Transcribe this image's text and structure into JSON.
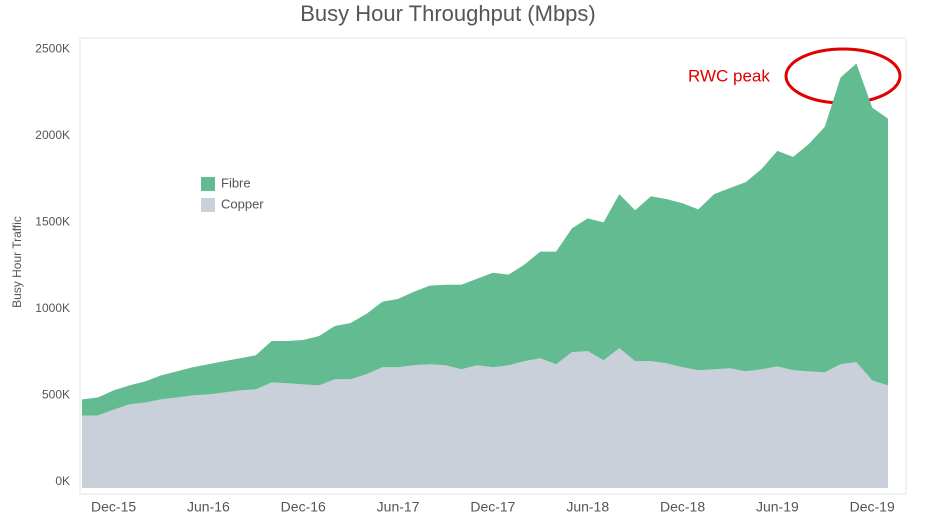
{
  "chart_data": {
    "type": "stacked_area",
    "title": "Busy Hour Throughput (Mbps)",
    "y_label": "Busy Hour Traffic",
    "categories": [
      null,
      null,
      "Dec-15",
      null,
      null,
      null,
      null,
      null,
      "Jun-16",
      null,
      null,
      null,
      null,
      null,
      "Dec-16",
      null,
      null,
      null,
      null,
      null,
      "Jun-17",
      null,
      null,
      null,
      null,
      null,
      "Dec-17",
      null,
      null,
      null,
      null,
      null,
      "Jun-18",
      null,
      null,
      null,
      null,
      null,
      "Dec-18",
      null,
      null,
      null,
      null,
      null,
      "Jun-19",
      null,
      null,
      null,
      null,
      null,
      "Dec-19",
      null
    ],
    "series": [
      {
        "name": "Copper",
        "color": "#c9d0da",
        "values": [
          419,
          419,
          453,
          483,
          494,
          512,
          523,
          535,
          541,
          552,
          564,
          570,
          610,
          605,
          599,
          593,
          628,
          628,
          657,
          698,
          698,
          709,
          715,
          709,
          686,
          709,
          698,
          709,
          733,
          750,
          715,
          785,
          791,
          738,
          808,
          733,
          733,
          721,
          698,
          680,
          686,
          692,
          674,
          686,
          703,
          680,
          674,
          669,
          715,
          727,
          622,
          593
        ]
      },
      {
        "name": "Fibre",
        "color": "#63bb92",
        "values": [
          93,
          104,
          111,
          110,
          122,
          139,
          151,
          163,
          174,
          181,
          186,
          197,
          239,
          244,
          256,
          285,
          308,
          325,
          349,
          378,
          395,
          425,
          454,
          465,
          488,
          500,
          546,
          524,
          558,
          616,
          651,
          715,
          767,
          797,
          890,
          872,
          953,
          948,
          947,
          930,
          1012,
          1041,
          1093,
          1157,
          1245,
          1233,
          1314,
          1418,
          1657,
          1726,
          1576,
          1541
        ]
      }
    ],
    "ylim": [
      0,
      2600
    ],
    "yticks": [
      {
        "value": 0,
        "label": "0K"
      },
      {
        "value": 500,
        "label": "500K"
      },
      {
        "value": 1000,
        "label": "1000K"
      },
      {
        "value": 1500,
        "label": "1500K"
      },
      {
        "value": 2000,
        "label": "2000K"
      },
      {
        "value": 2500,
        "label": "2500K"
      }
    ],
    "grid": false,
    "legend_position": "left",
    "annotation": {
      "text": "RWC peak",
      "color": "#e00000"
    }
  }
}
